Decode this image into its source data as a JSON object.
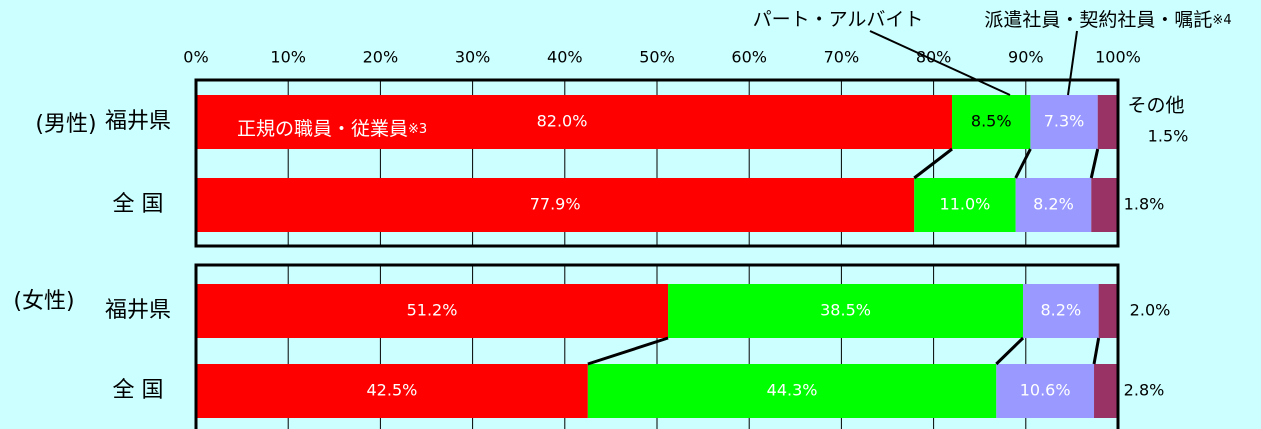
{
  "chart_data": {
    "type": "bar",
    "orientation": "horizontal",
    "stacked": true,
    "percent_axis": true,
    "xlim": [
      0,
      100
    ],
    "tick_labels": [
      "0%",
      "10%",
      "20%",
      "30%",
      "40%",
      "50%",
      "60%",
      "70%",
      "80%",
      "90%",
      "100%"
    ],
    "grid": true,
    "colors": [
      "#ff0000",
      "#00ff00",
      "#9999ff",
      "#993366"
    ],
    "series_labels": {
      "regular": "正規の職員・従業員※3",
      "part": "パート・アルバイト",
      "dispatch": "派遣社員・契約社員・嘱託※4",
      "other": "その他"
    },
    "groups": [
      {
        "label": "(男性)",
        "bars": [
          {
            "label": "福井県",
            "values": [
              82.0,
              8.5,
              7.3,
              1.5
            ],
            "value_labels": [
              "82.0%",
              "8.5%",
              "7.3%",
              "1.5%"
            ]
          },
          {
            "label": "全 国",
            "values": [
              77.9,
              11.0,
              8.2,
              1.8
            ],
            "value_labels": [
              "77.9%",
              "11.0%",
              "8.2%",
              "1.8%"
            ]
          }
        ]
      },
      {
        "label": "(女性)",
        "bars": [
          {
            "label": "福井県",
            "values": [
              51.2,
              38.5,
              8.2,
              2.0
            ],
            "value_labels": [
              "51.2%",
              "38.5%",
              "8.2%",
              "2.0%"
            ]
          },
          {
            "label": "全 国",
            "values": [
              42.5,
              44.3,
              10.6,
              2.8
            ],
            "value_labels": [
              "42.5%",
              "44.3%",
              "10.6%",
              "2.8%"
            ]
          }
        ]
      }
    ]
  }
}
